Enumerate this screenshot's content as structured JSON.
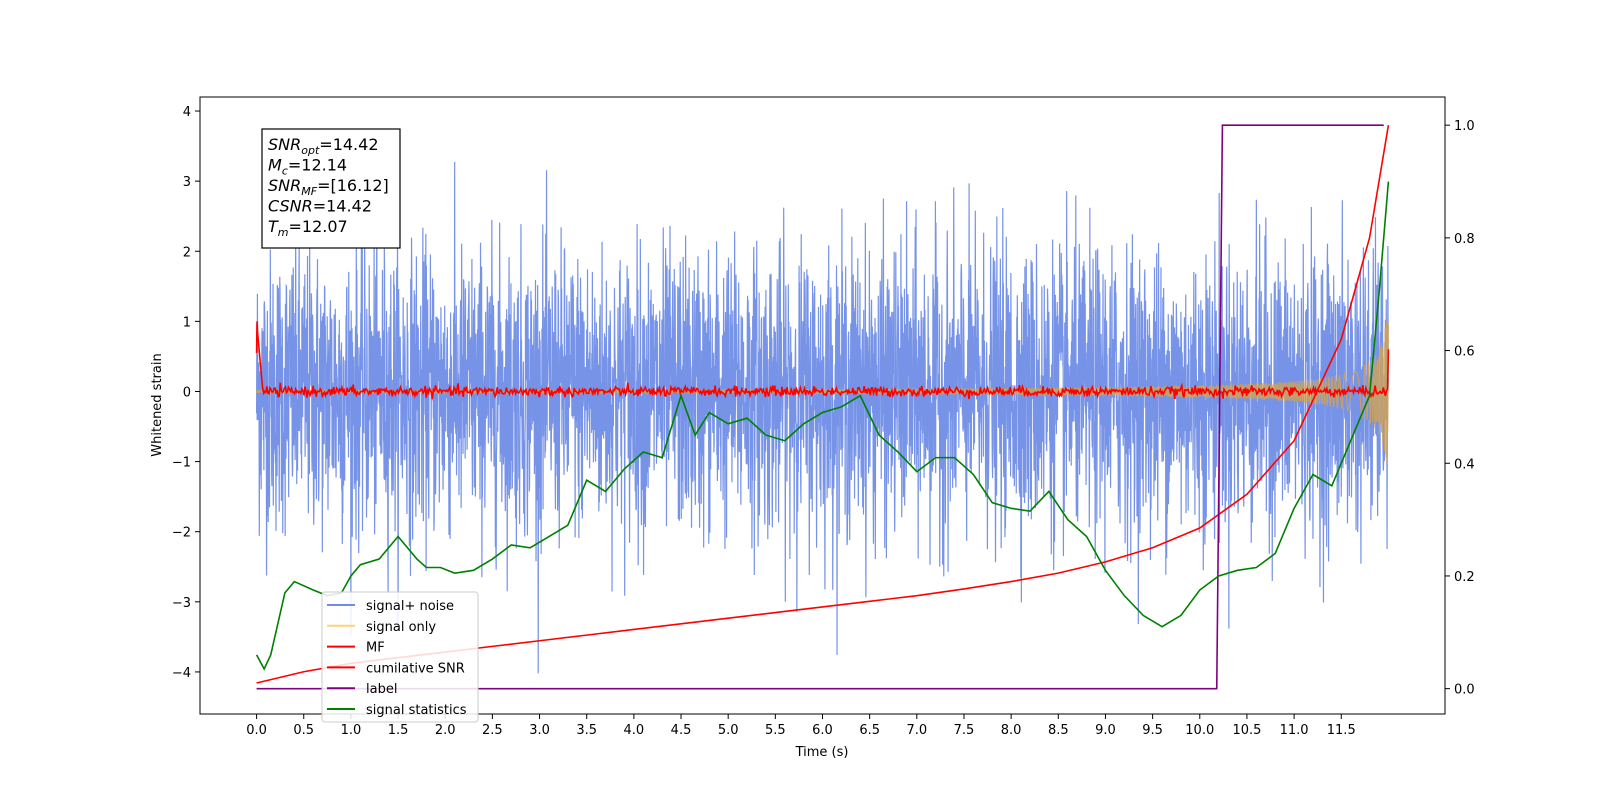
{
  "chart_data": {
    "type": "line",
    "xlabel": "Time (s)",
    "ylabel": "Whitened strain",
    "xlim": [
      -0.6,
      12.6
    ],
    "ylim": [
      -4.6,
      4.2
    ],
    "ylim_right": [
      -0.045,
      1.05
    ],
    "xticks": [
      0.0,
      0.5,
      1.0,
      1.5,
      2.0,
      2.5,
      3.0,
      3.5,
      4.0,
      4.5,
      5.0,
      5.5,
      6.0,
      6.5,
      7.0,
      7.5,
      8.0,
      8.5,
      9.0,
      9.5,
      10.0,
      10.5,
      11.0,
      11.5
    ],
    "xtick_labels": [
      "0.0",
      "0.5",
      "1.0",
      "1.5",
      "2.0",
      "2.5",
      "3.0",
      "3.5",
      "4.0",
      "4.5",
      "5.0",
      "5.5",
      "6.0",
      "6.5",
      "7.0",
      "7.5",
      "8.0",
      "8.5",
      "9.0",
      "9.5",
      "10.0",
      "10.5",
      "11.0",
      "11.5"
    ],
    "yticks_left": [
      -4,
      -3,
      -2,
      -1,
      0,
      1,
      2,
      3,
      4
    ],
    "ytick_labels_left": [
      "−4",
      "−3",
      "−2",
      "−1",
      "0",
      "1",
      "2",
      "3",
      "4"
    ],
    "yticks_right": [
      0.0,
      0.2,
      0.4,
      0.6,
      0.8,
      1.0
    ],
    "ytick_labels_right": [
      "0.0",
      "0.2",
      "0.4",
      "0.6",
      "0.8",
      "1.0"
    ],
    "grid": false,
    "legend_placement": "lower-left",
    "annotations": [
      {
        "base": "SNR",
        "sub": "opt",
        "value": "=14.42"
      },
      {
        "base": "M",
        "sub": "c",
        "value": "=12.14"
      },
      {
        "base": "SNR",
        "sub": "MF",
        "value": "=[16.12]"
      },
      {
        "base": "CSNR",
        "sub": "",
        "value": "=14.42"
      },
      {
        "base": "T",
        "sub": "m",
        "value": "=12.07"
      }
    ],
    "series": [
      {
        "name": "signal+ noise",
        "axis": "left",
        "color": "#6f8de6",
        "description_values": {
          "x_start": 0.0,
          "x_end": 12.0,
          "approx_std": 1.0,
          "approx_range": [
            -4.15,
            3.85
          ]
        }
      },
      {
        "name": "signal only",
        "axis": "left",
        "color": "#ffd27a",
        "description_values": {
          "envelope_start": 0.02,
          "envelope_end": 1.2,
          "x_start": 0.0,
          "x_end": 12.0
        }
      },
      {
        "name": "MF",
        "axis": "left",
        "color": "#ff0000",
        "description_values": {
          "x_start": 0.0,
          "x_end": 12.0,
          "start_spike": 1.0,
          "baseline": 0.0,
          "noise_amp": 0.08
        }
      },
      {
        "name": "cumilative SNR",
        "axis": "right",
        "color": "#ff0000",
        "x": [
          0.0,
          0.5,
          1.0,
          1.5,
          2.0,
          2.5,
          3.0,
          3.5,
          4.0,
          4.5,
          5.0,
          5.5,
          6.0,
          6.5,
          7.0,
          7.5,
          8.0,
          8.5,
          9.0,
          9.5,
          10.0,
          10.5,
          11.0,
          11.5,
          11.8,
          12.0
        ],
        "values": [
          0.01,
          0.03,
          0.045,
          0.055,
          0.065,
          0.075,
          0.085,
          0.095,
          0.105,
          0.115,
          0.125,
          0.135,
          0.145,
          0.155,
          0.165,
          0.177,
          0.19,
          0.205,
          0.225,
          0.25,
          0.285,
          0.345,
          0.44,
          0.62,
          0.8,
          1.0
        ]
      },
      {
        "name": "label",
        "axis": "right",
        "color": "#800080",
        "x": [
          0.0,
          10.18,
          10.24,
          11.95
        ],
        "values": [
          0.0,
          0.0,
          1.0,
          1.0
        ]
      },
      {
        "name": "signal statistics",
        "axis": "right",
        "color": "#008000",
        "x": [
          0.0,
          0.08,
          0.15,
          0.3,
          0.4,
          0.6,
          0.75,
          0.9,
          1.0,
          1.1,
          1.3,
          1.5,
          1.7,
          1.8,
          1.95,
          2.1,
          2.3,
          2.5,
          2.7,
          2.9,
          3.1,
          3.3,
          3.5,
          3.7,
          3.9,
          4.1,
          4.3,
          4.5,
          4.65,
          4.8,
          5.0,
          5.2,
          5.4,
          5.6,
          5.8,
          6.0,
          6.2,
          6.4,
          6.6,
          6.8,
          7.0,
          7.2,
          7.4,
          7.6,
          7.8,
          8.0,
          8.2,
          8.4,
          8.6,
          8.8,
          9.0,
          9.2,
          9.4,
          9.6,
          9.8,
          10.0,
          10.2,
          10.4,
          10.6,
          10.8,
          11.0,
          11.2,
          11.4,
          11.6,
          11.8,
          11.9,
          12.0
        ],
        "values": [
          0.06,
          0.035,
          0.06,
          0.17,
          0.19,
          0.175,
          0.165,
          0.17,
          0.2,
          0.22,
          0.23,
          0.27,
          0.23,
          0.215,
          0.215,
          0.205,
          0.21,
          0.23,
          0.255,
          0.25,
          0.27,
          0.29,
          0.37,
          0.35,
          0.39,
          0.42,
          0.41,
          0.52,
          0.45,
          0.49,
          0.47,
          0.48,
          0.45,
          0.44,
          0.47,
          0.49,
          0.5,
          0.52,
          0.45,
          0.42,
          0.385,
          0.41,
          0.41,
          0.38,
          0.33,
          0.32,
          0.315,
          0.35,
          0.3,
          0.27,
          0.21,
          0.165,
          0.13,
          0.11,
          0.13,
          0.175,
          0.2,
          0.21,
          0.215,
          0.24,
          0.32,
          0.38,
          0.36,
          0.44,
          0.52,
          0.7,
          0.9
        ]
      }
    ]
  }
}
